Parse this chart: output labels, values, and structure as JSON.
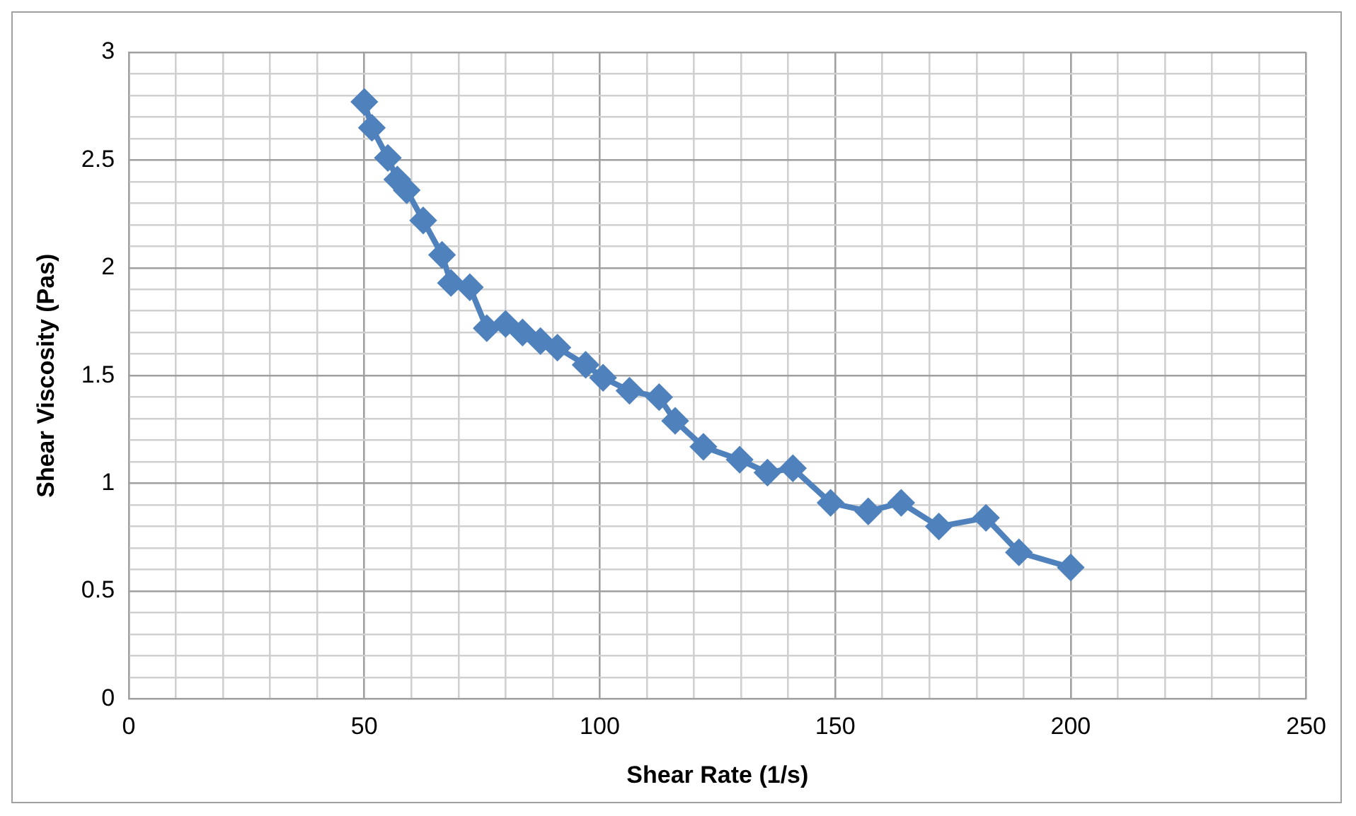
{
  "chart_data": {
    "type": "line",
    "xlabel": "Shear Rate (1/s)",
    "ylabel": "Shear Viscosity (Pas)",
    "xlim": [
      0,
      250
    ],
    "ylim": [
      0,
      3
    ],
    "xticks": [
      0,
      {
        "value": 10,
        "label": null
      },
      {
        "value": 20,
        "label": null
      },
      {
        "value": 30,
        "label": null
      },
      {
        "value": 40,
        "label": null
      },
      50,
      {
        "value": 60,
        "label": null
      },
      {
        "value": 70,
        "label": null
      },
      {
        "value": 80,
        "label": null
      },
      {
        "value": 90,
        "label": null
      },
      100,
      {
        "value": 110,
        "label": null
      },
      {
        "value": 120,
        "label": null
      },
      {
        "value": 130,
        "label": null
      },
      {
        "value": 140,
        "label": null
      },
      150,
      {
        "value": 160,
        "label": null
      },
      {
        "value": 170,
        "label": null
      },
      {
        "value": 180,
        "label": null
      },
      {
        "value": 190,
        "label": null
      },
      200,
      {
        "value": 210,
        "label": null
      },
      {
        "value": 220,
        "label": null
      },
      {
        "value": 230,
        "label": null
      },
      {
        "value": 240,
        "label": null
      },
      250
    ],
    "yticks": [
      0,
      {
        "value": 0.1,
        "label": null
      },
      {
        "value": 0.2,
        "label": null
      },
      {
        "value": 0.3,
        "label": null
      },
      {
        "value": 0.4,
        "label": null
      },
      0.5,
      {
        "value": 0.6,
        "label": null
      },
      {
        "value": 0.7,
        "label": null
      },
      {
        "value": 0.8,
        "label": null
      },
      {
        "value": 0.9,
        "label": null
      },
      1,
      {
        "value": 1.1,
        "label": null
      },
      {
        "value": 1.2,
        "label": null
      },
      {
        "value": 1.3,
        "label": null
      },
      {
        "value": 1.4,
        "label": null
      },
      1.5,
      {
        "value": 1.6,
        "label": null
      },
      {
        "value": 1.7,
        "label": null
      },
      {
        "value": 1.8,
        "label": null
      },
      {
        "value": 1.9,
        "label": null
      },
      2,
      {
        "value": 2.1,
        "label": null
      },
      {
        "value": 2.2,
        "label": null
      },
      {
        "value": 2.3,
        "label": null
      },
      {
        "value": 2.4,
        "label": null
      },
      2.5,
      {
        "value": 2.6,
        "label": null
      },
      {
        "value": 2.7,
        "label": null
      },
      {
        "value": 2.8,
        "label": null
      },
      {
        "value": 2.9,
        "label": null
      },
      3
    ],
    "grid": true,
    "legend": false,
    "marker": "diamond",
    "line_style": "solid",
    "series": [
      {
        "color": "#4f81bd",
        "x": [
          50,
          51.6,
          55,
          57,
          59,
          62.5,
          66.5,
          68.4,
          72.4,
          76,
          80,
          83.6,
          87.4,
          91,
          97,
          100.7,
          106.3,
          112.6,
          116,
          122,
          129.7,
          135.6,
          141,
          149,
          157,
          164,
          172,
          182,
          189,
          200
        ],
        "values": [
          2.77,
          2.65,
          2.51,
          2.41,
          2.36,
          2.22,
          2.06,
          1.93,
          1.91,
          1.72,
          1.74,
          1.7,
          1.66,
          1.63,
          1.55,
          1.49,
          1.43,
          1.4,
          1.29,
          1.17,
          1.11,
          1.05,
          1.07,
          0.91,
          0.87,
          0.91,
          0.8,
          0.84,
          0.68,
          0.61
        ]
      }
    ]
  }
}
